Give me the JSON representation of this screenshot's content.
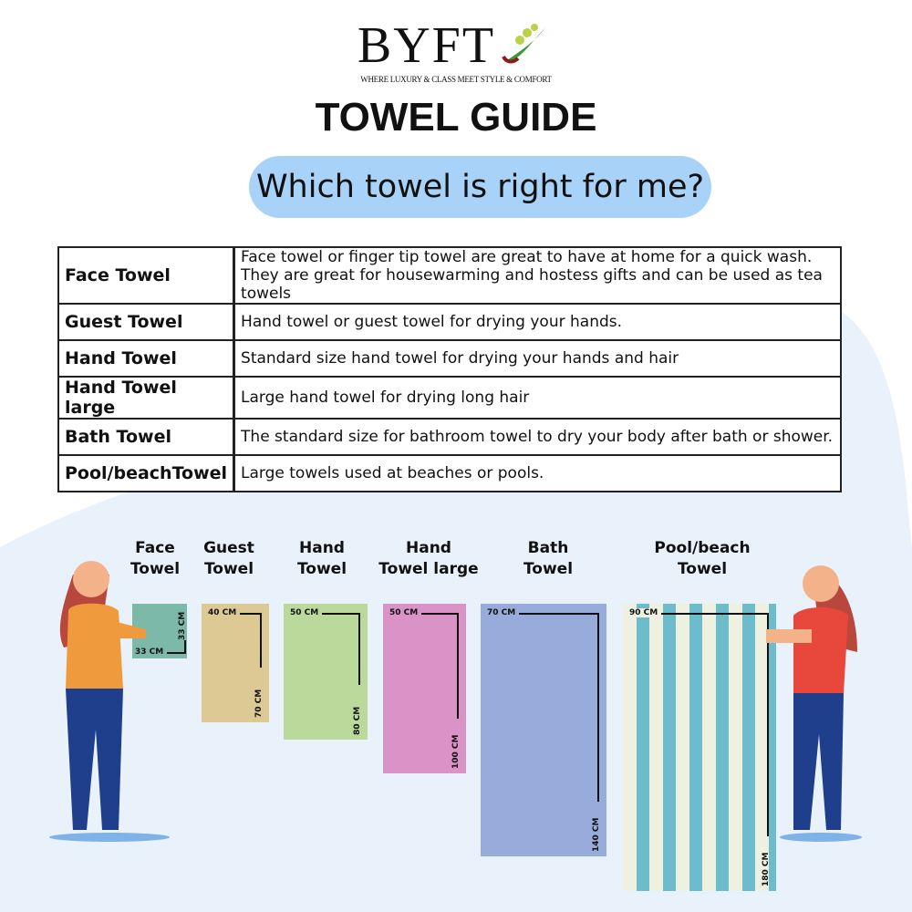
{
  "logo": {
    "name": "BYFT",
    "tagline": "WHERE LUXURY & CLASS MEET STYLE & COMFORT"
  },
  "title": "TOWEL GUIDE",
  "subtitle": "Which towel is right for me?",
  "table": [
    {
      "name": "Face Towel",
      "desc": "Face towel or finger tip towel are great to have at home for a quick wash.",
      "desc2": "They are great for housewarming and hostess gifts and can be used as tea towels"
    },
    {
      "name": "Guest Towel",
      "desc": "Hand towel or guest towel for drying your hands."
    },
    {
      "name": "Hand Towel",
      "desc": "Standard size hand towel for drying your hands and hair"
    },
    {
      "name": "Hand Towel large",
      "desc": "Large hand towel for drying long hair"
    },
    {
      "name": "Bath Towel",
      "desc": "The standard size for bathroom towel to dry your body after bath or shower."
    },
    {
      "name": "Pool/beachTowel",
      "desc": "Large towels used at beaches or pools."
    }
  ],
  "towels": [
    {
      "l1": "Face",
      "l2": "Towel",
      "w": "33 CM",
      "h": "33 CM",
      "color": "#7db9a9"
    },
    {
      "l1": "Guest",
      "l2": "Towel",
      "w": "40 CM",
      "h": "70 CM",
      "color": "#dcc993"
    },
    {
      "l1": "Hand",
      "l2": "Towel",
      "w": "50 CM",
      "h": "80 CM",
      "color": "#bbd99a"
    },
    {
      "l1": "Hand",
      "l2": "Towel large",
      "w": "50 CM",
      "h": "100 CM",
      "color": "#d993c6"
    },
    {
      "l1": "Bath",
      "l2": "Towel",
      "w": "70 CM",
      "h": "140 CM",
      "color": "#97acda"
    },
    {
      "l1": "Pool/beach",
      "l2": "Towel",
      "w": "90 CM",
      "h": "180 CM",
      "color": "#6cbccb"
    }
  ]
}
